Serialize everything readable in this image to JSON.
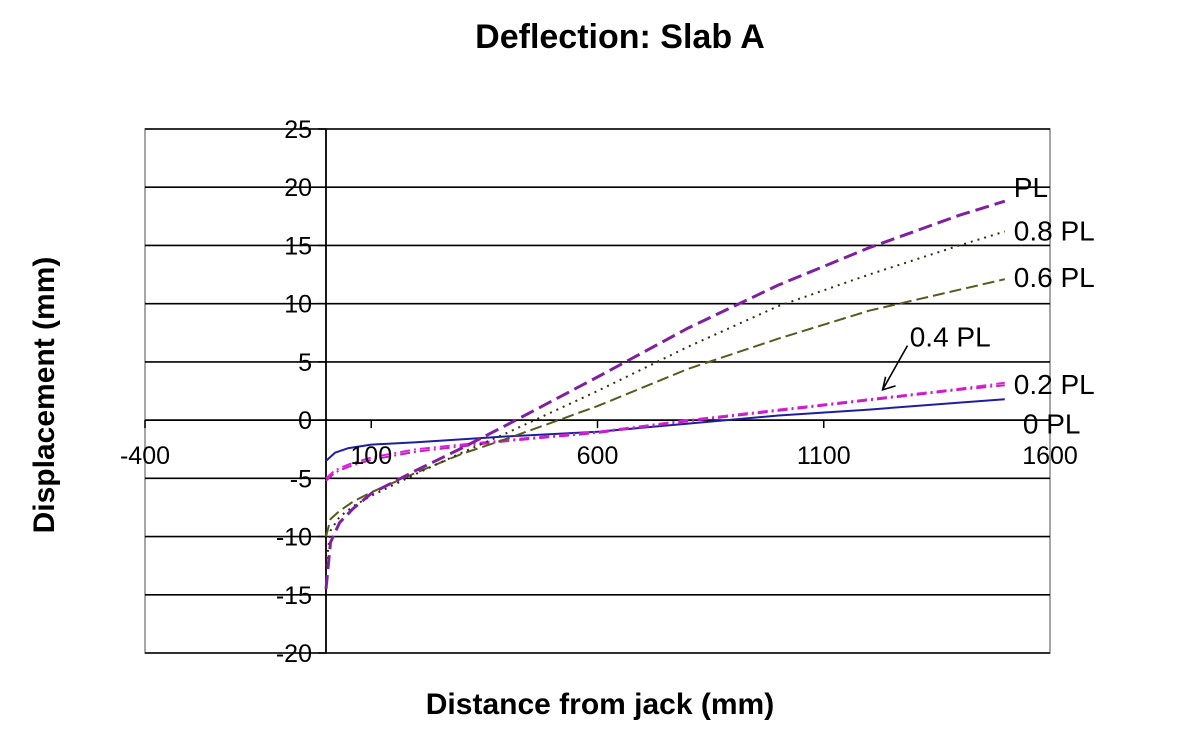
{
  "chart_data": {
    "type": "line",
    "title": "Deflection: Slab A",
    "xlabel": "Distance from jack (mm)",
    "ylabel": "Displacement (mm)",
    "xlim": [
      -400,
      1600
    ],
    "ylim": [
      -20,
      25
    ],
    "x_ticks": [
      -400,
      100,
      600,
      1100,
      1600
    ],
    "y_ticks": [
      25,
      20,
      15,
      10,
      5,
      0,
      -5,
      -10,
      -15,
      -20
    ],
    "grid": "horizontal",
    "series": [
      {
        "name": "0 PL",
        "color": "#1f1f9e",
        "dash": "solid",
        "x": [
          0,
          20,
          50,
          100,
          200,
          400,
          600,
          800,
          1000,
          1200,
          1400,
          1500
        ],
        "y": [
          -3.5,
          -2.8,
          -2.4,
          -2.1,
          -1.9,
          -1.4,
          -1.0,
          -0.3,
          0.4,
          0.9,
          1.5,
          1.8
        ]
      },
      {
        "name": "0.2 PL",
        "color": "#e020e0",
        "dash": "dashdot",
        "x": [
          0,
          20,
          50,
          100,
          200,
          400,
          600,
          800,
          1000,
          1200,
          1400,
          1500
        ],
        "y": [
          -5.0,
          -4.3,
          -3.8,
          -3.2,
          -2.5,
          -1.7,
          -1.0,
          0.0,
          0.9,
          1.8,
          2.7,
          3.2
        ]
      },
      {
        "name": "0.4 PL",
        "color": "#c020c0",
        "dash": "dashdot",
        "x": [
          0,
          20,
          50,
          100,
          200,
          400,
          600,
          800,
          1000,
          1200,
          1400,
          1500
        ],
        "y": [
          -5.2,
          -4.5,
          -4.0,
          -3.4,
          -2.7,
          -1.8,
          -1.1,
          -0.1,
          0.8,
          1.7,
          2.6,
          3.0
        ]
      },
      {
        "name": "0.6 PL",
        "color": "#5a5a20",
        "dash": "longdash",
        "x": [
          0,
          10,
          30,
          60,
          100,
          200,
          300,
          400,
          600,
          800,
          1000,
          1200,
          1400,
          1500
        ],
        "y": [
          -10.0,
          -8.5,
          -7.8,
          -7.0,
          -6.2,
          -4.5,
          -2.9,
          -1.6,
          1.2,
          4.4,
          7.0,
          9.4,
          11.2,
          12.1
        ]
      },
      {
        "name": "0.8 PL",
        "color": "#303010",
        "dash": "dotted",
        "x": [
          0,
          10,
          30,
          60,
          100,
          200,
          300,
          400,
          600,
          800,
          1000,
          1200,
          1400,
          1500
        ],
        "y": [
          -12.5,
          -9.5,
          -8.3,
          -7.4,
          -6.5,
          -4.6,
          -2.8,
          -1.1,
          2.5,
          6.3,
          9.8,
          12.5,
          15.0,
          16.2
        ]
      },
      {
        "name": "PL",
        "color": "#8020a0",
        "dash": "dashed",
        "x": [
          0,
          10,
          30,
          60,
          100,
          200,
          300,
          400,
          600,
          800,
          1000,
          1200,
          1400,
          1500
        ],
        "y": [
          -14.5,
          -10.5,
          -8.8,
          -7.6,
          -6.3,
          -4.3,
          -2.4,
          -0.4,
          3.7,
          7.9,
          11.6,
          14.8,
          17.6,
          18.8
        ]
      }
    ],
    "annotations": [
      {
        "text": "PL",
        "x": 1520,
        "y": 20.0
      },
      {
        "text": "0.8 PL",
        "x": 1520,
        "y": 16.3
      },
      {
        "text": "0.6 PL",
        "x": 1520,
        "y": 12.3
      },
      {
        "text": "0.4 PL",
        "x": 1290,
        "y": 7.2
      },
      {
        "text": "0.2 PL",
        "x": 1520,
        "y": 3.1
      },
      {
        "text": "0 PL",
        "x": 1540,
        "y": -0.3
      }
    ]
  }
}
